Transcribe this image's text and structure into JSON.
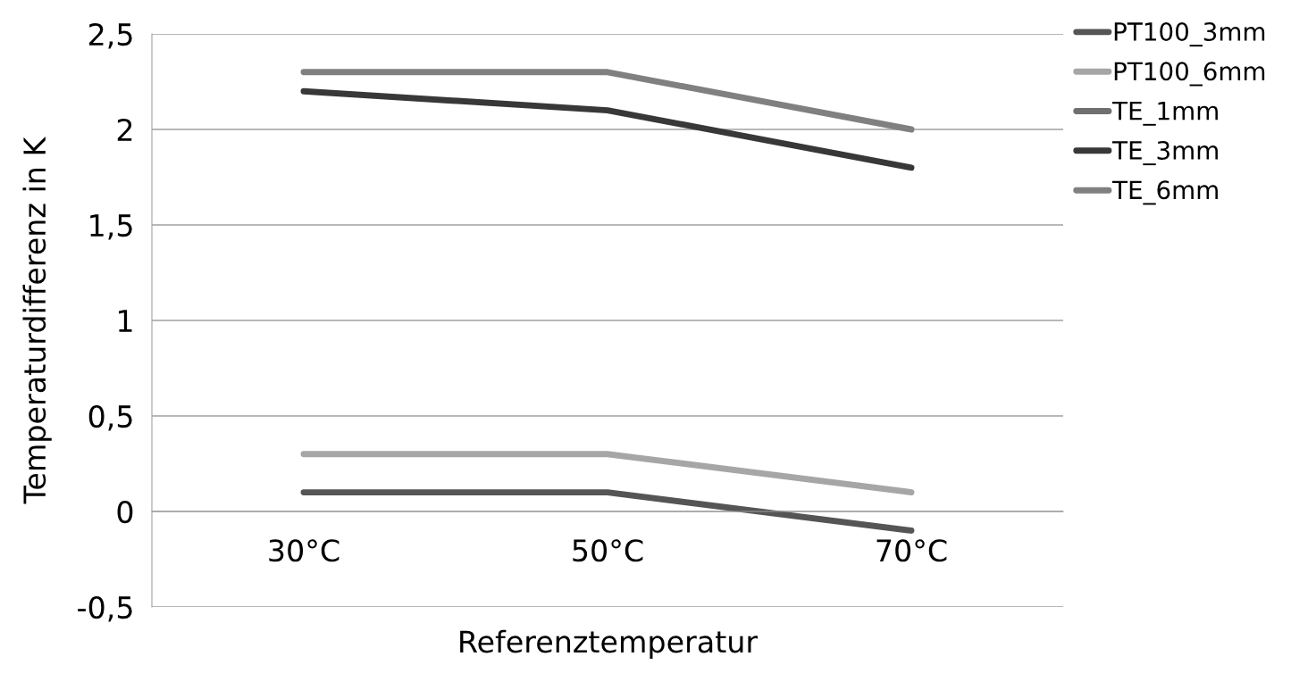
{
  "chart_data": {
    "type": "line",
    "xlabel": "Referenztemperatur",
    "ylabel": "Temperaturdifferenz in K",
    "categories": [
      "30°C",
      "50°C",
      "70°C"
    ],
    "series": [
      {
        "name": "PT100_3mm",
        "color": "#555555",
        "values": [
          0.1,
          0.1,
          -0.1
        ]
      },
      {
        "name": "PT100_6mm",
        "color": "#a6a6a6",
        "values": [
          0.3,
          0.3,
          0.1
        ]
      },
      {
        "name": "TE_1mm",
        "color": "#6f6f6f",
        "values": [
          null,
          null,
          null
        ]
      },
      {
        "name": "TE_3mm",
        "color": "#383838",
        "values": [
          2.2,
          2.1,
          1.8
        ]
      },
      {
        "name": "TE_6mm",
        "color": "#808080",
        "values": [
          2.3,
          2.3,
          2.0
        ]
      }
    ],
    "ylim": [
      -0.5,
      2.5
    ],
    "yticks": [
      {
        "value": -0.5,
        "label": "-0,5"
      },
      0,
      {
        "value": 0.5,
        "label": "0,5"
      },
      1,
      {
        "value": 1.5,
        "label": "1,5"
      },
      2,
      {
        "value": 2.5,
        "label": "2,5"
      }
    ],
    "grid": "y",
    "legend": "top right",
    "marker": "none",
    "line_style": "solid"
  }
}
